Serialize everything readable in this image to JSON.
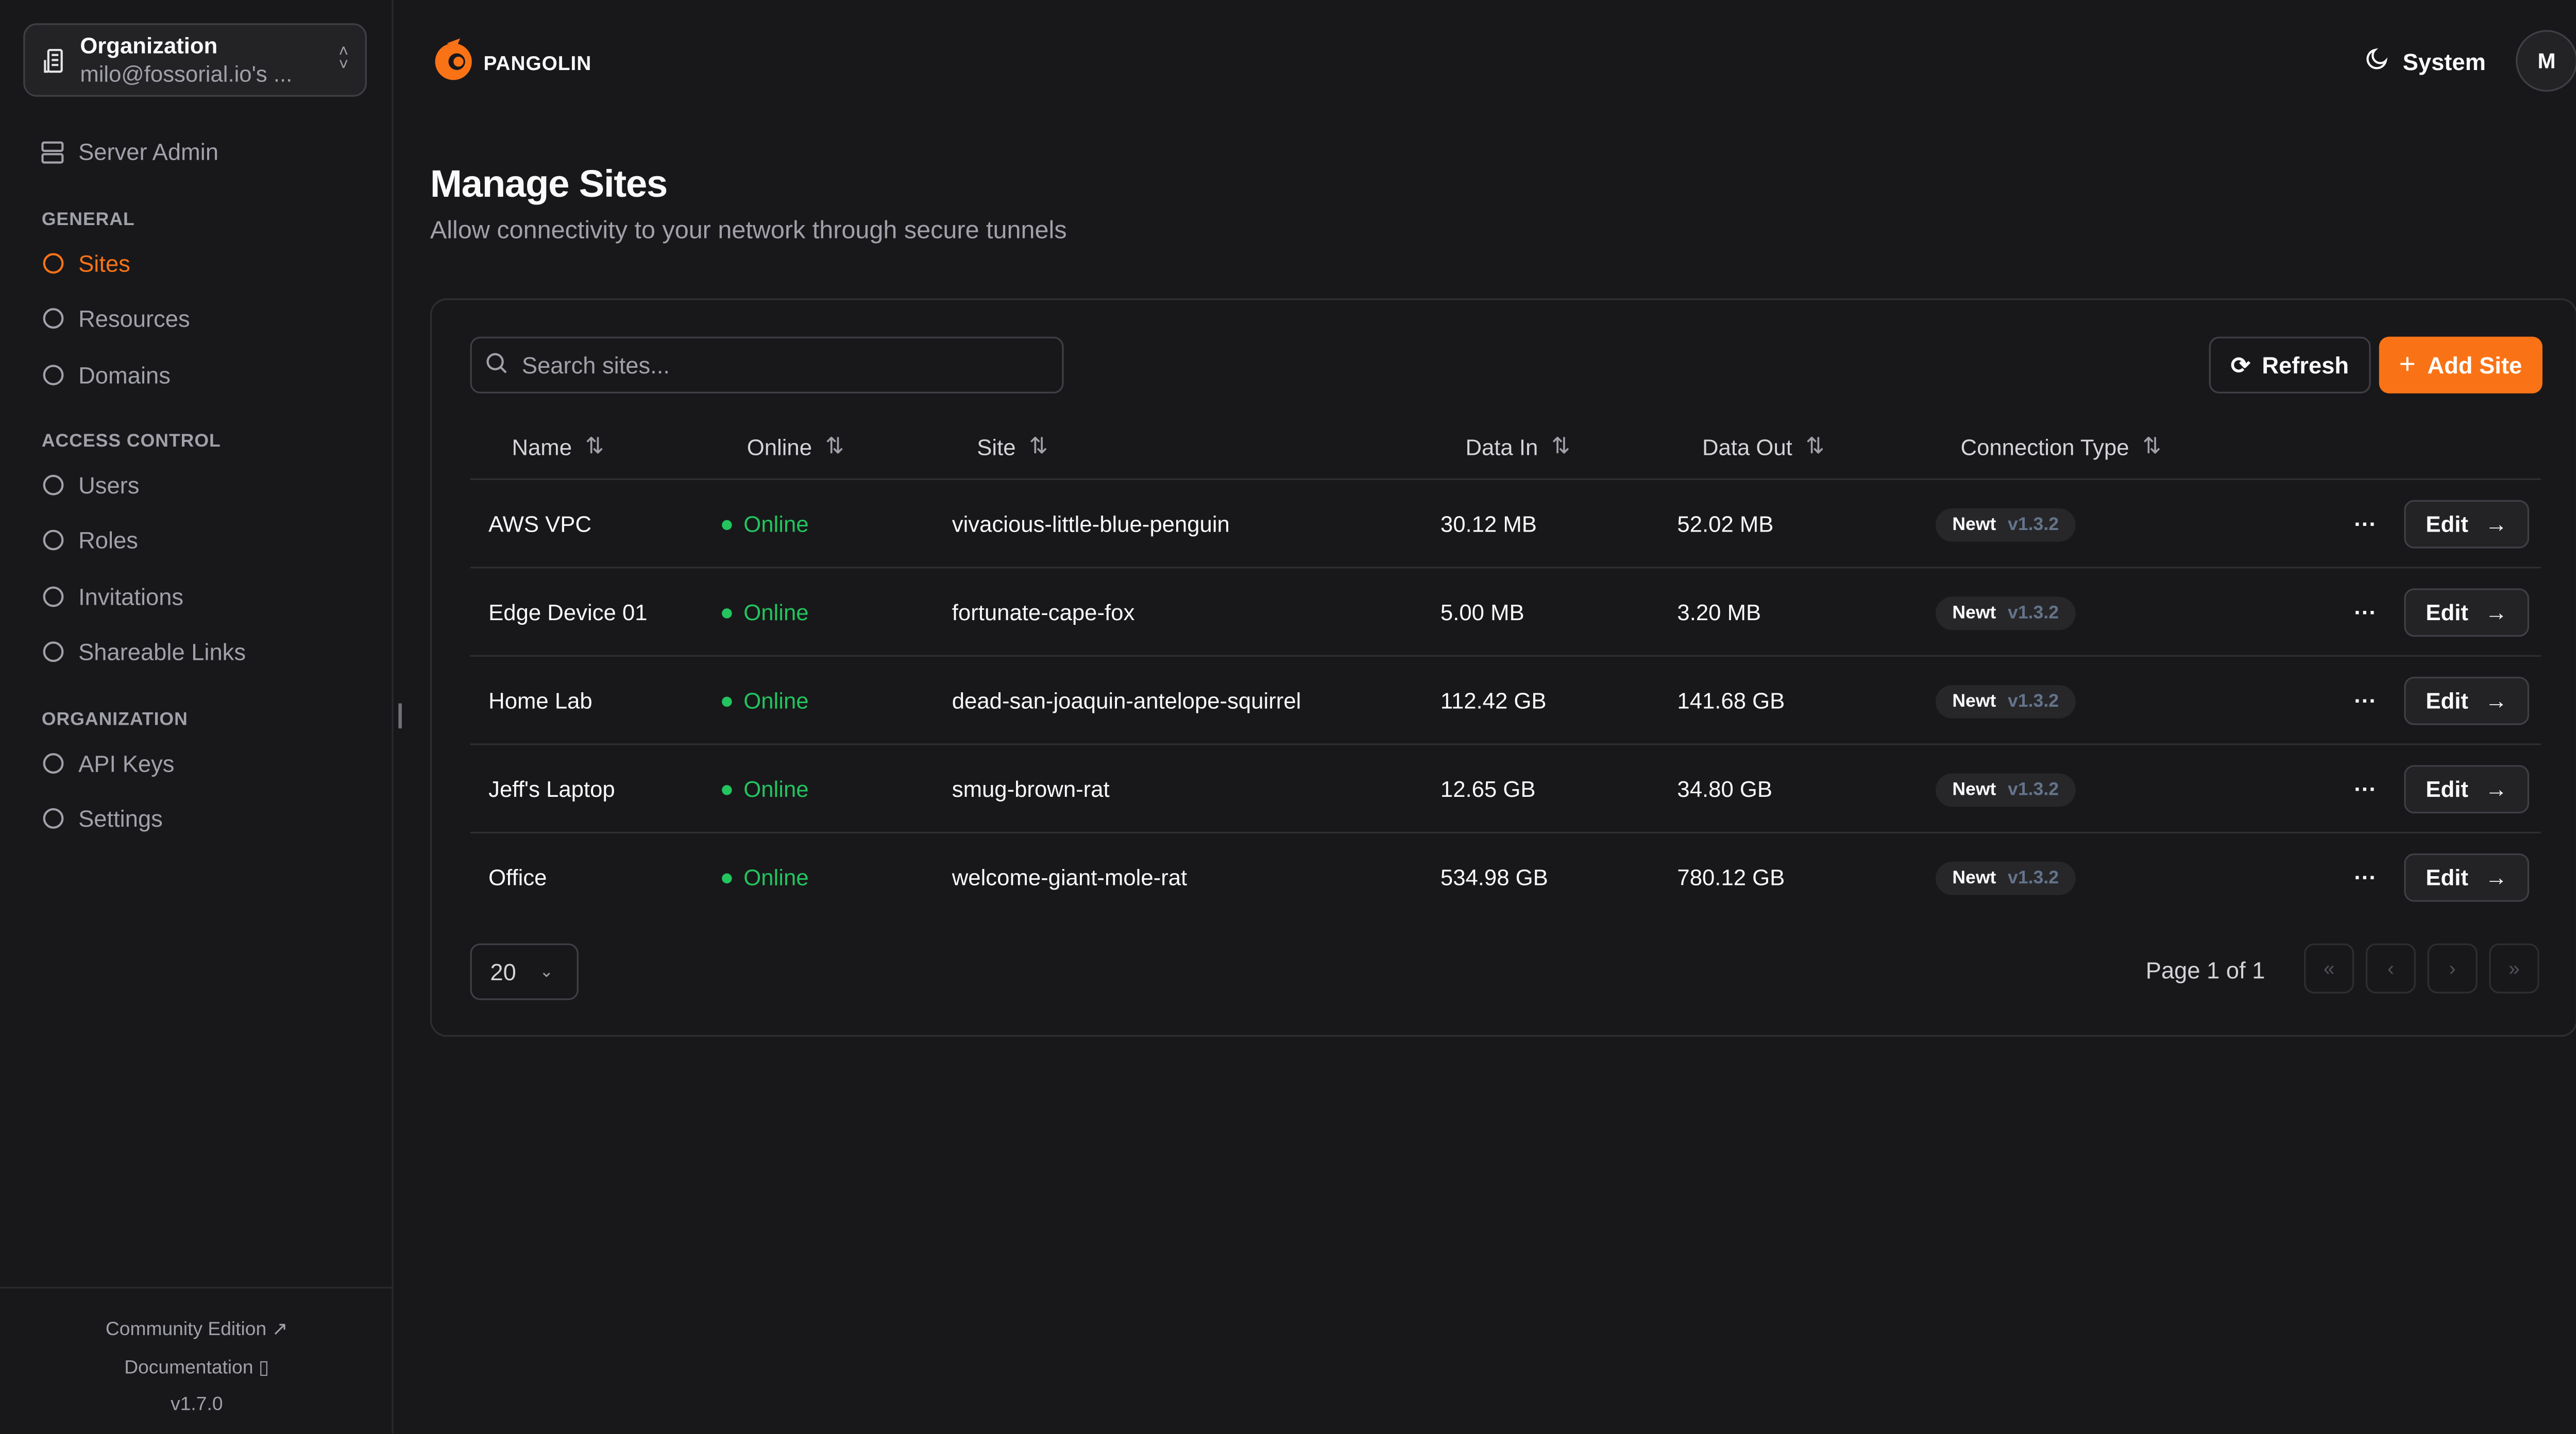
{
  "org": {
    "label": "Organization",
    "value": "milo@fossorial.io's ..."
  },
  "sidebar": {
    "server_admin": "Server Admin",
    "sections": [
      {
        "title": "GENERAL",
        "items": [
          {
            "label": "Sites",
            "icon": "sites-icon",
            "active": true
          },
          {
            "label": "Resources",
            "icon": "resources-icon"
          },
          {
            "label": "Domains",
            "icon": "globe-icon"
          }
        ]
      },
      {
        "title": "ACCESS CONTROL",
        "items": [
          {
            "label": "Users",
            "icon": "user-icon"
          },
          {
            "label": "Roles",
            "icon": "users-icon"
          },
          {
            "label": "Invitations",
            "icon": "mail-icon"
          },
          {
            "label": "Shareable Links",
            "icon": "link-icon"
          }
        ]
      },
      {
        "title": "ORGANIZATION",
        "items": [
          {
            "label": "API Keys",
            "icon": "key-icon"
          },
          {
            "label": "Settings",
            "icon": "gear-icon"
          }
        ]
      }
    ],
    "footer": {
      "community": "Community Edition",
      "docs": "Documentation",
      "version": "v1.7.0"
    }
  },
  "header": {
    "brand": "PANGOLIN",
    "theme": "System",
    "avatar": "M"
  },
  "page": {
    "title": "Manage Sites",
    "subtitle": "Allow connectivity to your network through secure tunnels"
  },
  "toolbar": {
    "search_placeholder": "Search sites...",
    "refresh": "Refresh",
    "add": "Add Site"
  },
  "table": {
    "columns": [
      "Name",
      "Online",
      "Site",
      "Data In",
      "Data Out",
      "Connection Type"
    ],
    "rows": [
      {
        "name": "AWS VPC",
        "online": "Online",
        "site": "vivacious-little-blue-penguin",
        "in": "30.12 MB",
        "out": "52.02 MB",
        "type": "Newt",
        "ver": "v1.3.2"
      },
      {
        "name": "Edge Device 01",
        "online": "Online",
        "site": "fortunate-cape-fox",
        "in": "5.00 MB",
        "out": "3.20 MB",
        "type": "Newt",
        "ver": "v1.3.2"
      },
      {
        "name": "Home Lab",
        "online": "Online",
        "site": "dead-san-joaquin-antelope-squirrel",
        "in": "112.42 GB",
        "out": "141.68 GB",
        "type": "Newt",
        "ver": "v1.3.2"
      },
      {
        "name": "Jeff's Laptop",
        "online": "Online",
        "site": "smug-brown-rat",
        "in": "12.65 GB",
        "out": "34.80 GB",
        "type": "Newt",
        "ver": "v1.3.2"
      },
      {
        "name": "Office",
        "online": "Online",
        "site": "welcome-giant-mole-rat",
        "in": "534.98 GB",
        "out": "780.12 GB",
        "type": "Newt",
        "ver": "v1.3.2"
      }
    ],
    "edit_label": "Edit"
  },
  "pagination": {
    "page_size": "20",
    "page_text": "Page 1 of 1"
  },
  "colors": {
    "accent": "#f97316",
    "online": "#22c55e",
    "background": "#18181b"
  }
}
